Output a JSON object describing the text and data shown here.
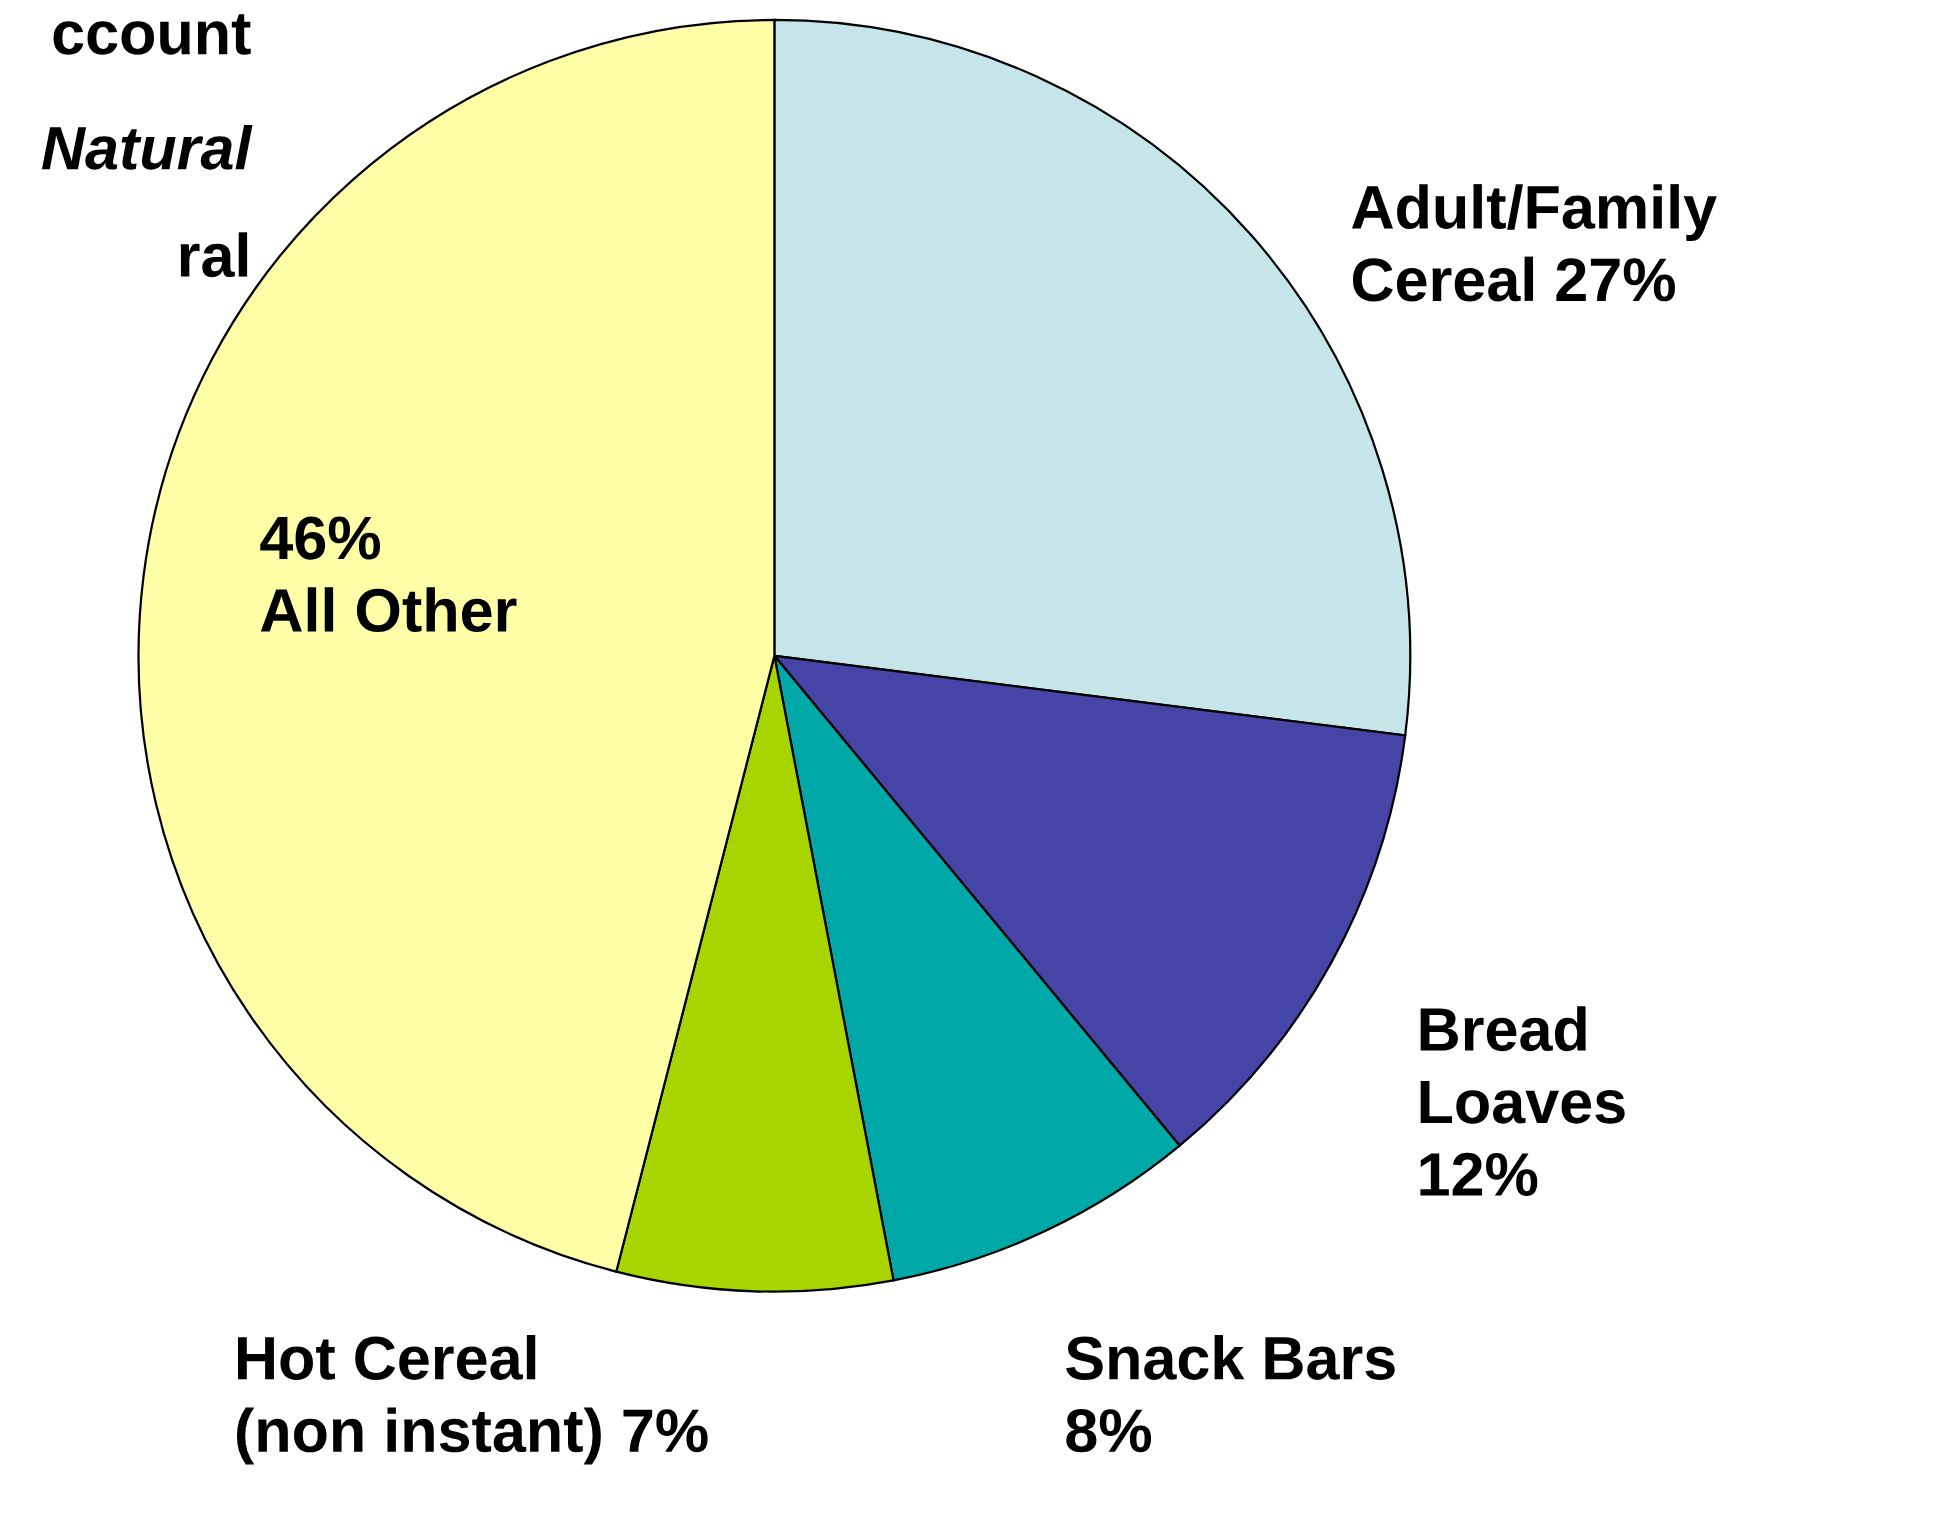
{
  "chart_data": {
    "type": "pie",
    "categories": [
      "Adult/Family\nCereal 27%",
      "Bread\nLoaves\n12%",
      "Snack Bars\n8%",
      "Hot Cereal\n(non instant) 7%",
      "46%\nAll Other"
    ],
    "values": [
      27,
      12,
      8,
      7,
      46
    ],
    "colors": [
      "#c6e5e8",
      "#4545a8",
      "#00a8a8",
      "#a8d400",
      "#ffffa8"
    ],
    "annotations": [
      "ccount",
      "Natural",
      "ral"
    ]
  }
}
